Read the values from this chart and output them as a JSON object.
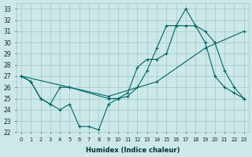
{
  "xlabel": "Humidex (Indice chaleur)",
  "xlim": [
    -0.5,
    23.5
  ],
  "ylim": [
    22,
    33.5
  ],
  "yticks": [
    22,
    23,
    24,
    25,
    26,
    27,
    28,
    29,
    30,
    31,
    32,
    33
  ],
  "xticks": [
    0,
    1,
    2,
    3,
    4,
    5,
    6,
    7,
    8,
    9,
    10,
    11,
    12,
    13,
    14,
    15,
    16,
    17,
    18,
    19,
    20,
    21,
    22,
    23
  ],
  "background_color": "#cce8e8",
  "grid_color": "#a0c8c8",
  "line_color": "#006666",
  "line1_x": [
    0,
    1,
    2,
    3,
    4,
    5,
    6,
    7,
    8,
    9,
    10,
    11,
    12,
    13,
    14,
    15,
    16,
    17,
    18,
    19,
    20,
    21,
    22,
    23
  ],
  "line1_y": [
    27.0,
    26.5,
    25.0,
    24.5,
    24.0,
    24.5,
    22.5,
    22.5,
    22.2,
    24.5,
    25.0,
    25.5,
    27.8,
    28.5,
    28.5,
    29.0,
    31.5,
    33.0,
    31.5,
    30.0,
    27.0,
    26.0,
    25.5,
    25.0
  ],
  "line2_x": [
    0,
    1,
    2,
    3,
    4,
    5,
    9,
    10,
    11,
    12,
    13,
    14,
    15,
    16,
    17,
    18,
    19,
    20,
    21,
    22,
    23
  ],
  "line2_y": [
    27.0,
    26.5,
    25.0,
    24.5,
    26.0,
    26.0,
    25.0,
    25.0,
    25.2,
    26.0,
    27.5,
    29.5,
    31.5,
    31.5,
    31.5,
    31.5,
    31.0,
    30.0,
    27.5,
    26.0,
    25.0
  ],
  "line3_x": [
    0,
    5,
    9,
    14,
    19,
    23
  ],
  "line3_y": [
    27.0,
    26.0,
    25.2,
    26.5,
    29.5,
    31.0
  ]
}
